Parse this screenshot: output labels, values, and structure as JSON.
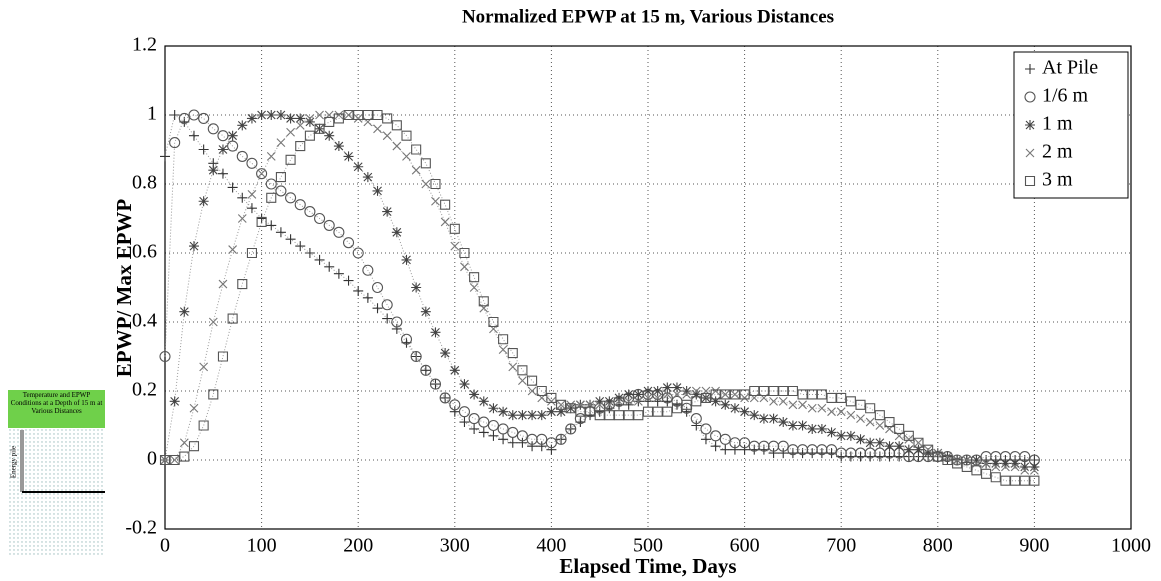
{
  "chart_data": {
    "type": "line",
    "title": "Normalized EPWP at 15 m, Various Distances",
    "xlabel": "Elapsed Time, Days",
    "ylabel": "EPWP/ Max EPWP",
    "xlim": [
      0,
      1000
    ],
    "ylim": [
      -0.2,
      1.2
    ],
    "xticks": [
      0,
      100,
      200,
      300,
      400,
      500,
      600,
      700,
      800,
      900,
      1000
    ],
    "yticks": [
      -0.2,
      0,
      0.2,
      0.4,
      0.6,
      0.8,
      1,
      1.2
    ],
    "grid": true,
    "legend": "upper right",
    "x": [
      0,
      10,
      20,
      30,
      40,
      50,
      60,
      70,
      80,
      90,
      100,
      110,
      120,
      130,
      140,
      150,
      160,
      170,
      180,
      190,
      200,
      210,
      220,
      230,
      240,
      250,
      260,
      270,
      280,
      290,
      300,
      310,
      320,
      330,
      340,
      350,
      360,
      370,
      380,
      390,
      400,
      410,
      420,
      430,
      440,
      450,
      460,
      470,
      480,
      490,
      500,
      510,
      520,
      530,
      540,
      550,
      560,
      570,
      580,
      590,
      600,
      610,
      620,
      630,
      640,
      650,
      660,
      670,
      680,
      690,
      700,
      710,
      720,
      730,
      740,
      750,
      760,
      770,
      780,
      790,
      800,
      810,
      820,
      830,
      840,
      850,
      860,
      870,
      880,
      890,
      900
    ],
    "series": [
      {
        "name": "At Pile",
        "marker": "plus",
        "color": "#333333",
        "values": [
          0.88,
          1.0,
          0.98,
          0.94,
          0.9,
          0.86,
          0.83,
          0.79,
          0.76,
          0.73,
          0.7,
          0.68,
          0.66,
          0.64,
          0.62,
          0.6,
          0.58,
          0.56,
          0.54,
          0.52,
          0.49,
          0.47,
          0.44,
          0.41,
          0.38,
          0.34,
          0.3,
          0.26,
          0.22,
          0.18,
          0.14,
          0.11,
          0.09,
          0.08,
          0.07,
          0.06,
          0.05,
          0.05,
          0.04,
          0.04,
          0.03,
          0.06,
          0.09,
          0.11,
          0.13,
          0.14,
          0.15,
          0.16,
          0.16,
          0.17,
          0.17,
          0.17,
          0.17,
          0.16,
          0.14,
          0.1,
          0.06,
          0.04,
          0.03,
          0.03,
          0.03,
          0.03,
          0.03,
          0.02,
          0.02,
          0.02,
          0.02,
          0.02,
          0.02,
          0.02,
          0.01,
          0.01,
          0.01,
          0.01,
          0.01,
          0.01,
          0.01,
          0.01,
          0.01,
          0.01,
          0.01,
          0.0,
          0.0,
          0.0,
          0.0,
          0.0,
          0.0,
          0.0,
          0.0,
          0.0,
          0.0
        ]
      },
      {
        "name": "1/6 m",
        "marker": "circle",
        "color": "#555555",
        "values": [
          0.3,
          0.92,
          0.99,
          1.0,
          0.99,
          0.96,
          0.94,
          0.91,
          0.88,
          0.86,
          0.83,
          0.8,
          0.78,
          0.76,
          0.74,
          0.72,
          0.7,
          0.68,
          0.66,
          0.63,
          0.6,
          0.55,
          0.5,
          0.45,
          0.4,
          0.35,
          0.3,
          0.26,
          0.22,
          0.18,
          0.16,
          0.14,
          0.12,
          0.11,
          0.1,
          0.09,
          0.08,
          0.07,
          0.06,
          0.06,
          0.05,
          0.06,
          0.09,
          0.12,
          0.14,
          0.15,
          0.16,
          0.17,
          0.18,
          0.19,
          0.19,
          0.19,
          0.18,
          0.17,
          0.15,
          0.12,
          0.09,
          0.07,
          0.06,
          0.05,
          0.05,
          0.04,
          0.04,
          0.04,
          0.04,
          0.03,
          0.03,
          0.03,
          0.03,
          0.03,
          0.02,
          0.02,
          0.02,
          0.02,
          0.02,
          0.02,
          0.02,
          0.01,
          0.01,
          0.01,
          0.01,
          0.01,
          0.0,
          0.0,
          0.0,
          0.01,
          0.01,
          0.01,
          0.01,
          0.01,
          0.0
        ]
      },
      {
        "name": "1 m",
        "marker": "star",
        "color": "#444444",
        "values": [
          0.0,
          0.17,
          0.43,
          0.62,
          0.75,
          0.84,
          0.9,
          0.94,
          0.97,
          0.99,
          1.0,
          1.0,
          1.0,
          0.99,
          0.99,
          0.98,
          0.96,
          0.94,
          0.91,
          0.88,
          0.85,
          0.82,
          0.78,
          0.72,
          0.66,
          0.58,
          0.5,
          0.43,
          0.37,
          0.31,
          0.26,
          0.22,
          0.19,
          0.17,
          0.15,
          0.14,
          0.13,
          0.13,
          0.13,
          0.13,
          0.14,
          0.14,
          0.15,
          0.16,
          0.16,
          0.17,
          0.17,
          0.18,
          0.19,
          0.19,
          0.2,
          0.2,
          0.21,
          0.21,
          0.2,
          0.19,
          0.18,
          0.17,
          0.16,
          0.15,
          0.14,
          0.13,
          0.12,
          0.12,
          0.11,
          0.1,
          0.1,
          0.09,
          0.09,
          0.08,
          0.07,
          0.07,
          0.06,
          0.05,
          0.05,
          0.04,
          0.04,
          0.03,
          0.03,
          0.02,
          0.02,
          0.01,
          0.0,
          0.0,
          0.0,
          -0.01,
          -0.01,
          -0.01,
          -0.01,
          -0.02,
          -0.02
        ]
      },
      {
        "name": "2 m",
        "marker": "x",
        "color": "#777777",
        "values": [
          0.0,
          0.0,
          0.05,
          0.15,
          0.27,
          0.4,
          0.51,
          0.61,
          0.7,
          0.77,
          0.83,
          0.88,
          0.92,
          0.95,
          0.97,
          0.99,
          1.0,
          1.0,
          1.0,
          1.0,
          0.99,
          0.98,
          0.96,
          0.94,
          0.91,
          0.88,
          0.84,
          0.8,
          0.75,
          0.69,
          0.62,
          0.56,
          0.5,
          0.44,
          0.38,
          0.32,
          0.27,
          0.23,
          0.2,
          0.18,
          0.17,
          0.16,
          0.16,
          0.16,
          0.16,
          0.16,
          0.16,
          0.17,
          0.17,
          0.17,
          0.18,
          0.18,
          0.19,
          0.19,
          0.19,
          0.2,
          0.2,
          0.2,
          0.19,
          0.19,
          0.18,
          0.18,
          0.18,
          0.17,
          0.17,
          0.16,
          0.16,
          0.15,
          0.15,
          0.14,
          0.14,
          0.13,
          0.12,
          0.11,
          0.1,
          0.09,
          0.07,
          0.06,
          0.05,
          0.03,
          0.02,
          0.01,
          0.0,
          0.0,
          -0.01,
          -0.01,
          -0.02,
          -0.02,
          -0.02,
          -0.03,
          -0.03
        ]
      },
      {
        "name": "3 m",
        "marker": "square",
        "color": "#555555",
        "values": [
          0.0,
          0.0,
          0.01,
          0.04,
          0.1,
          0.19,
          0.3,
          0.41,
          0.51,
          0.6,
          0.69,
          0.76,
          0.82,
          0.87,
          0.91,
          0.94,
          0.96,
          0.98,
          0.99,
          1.0,
          1.0,
          1.0,
          1.0,
          0.99,
          0.97,
          0.94,
          0.9,
          0.86,
          0.8,
          0.74,
          0.67,
          0.6,
          0.53,
          0.46,
          0.4,
          0.35,
          0.31,
          0.26,
          0.23,
          0.2,
          0.18,
          0.16,
          0.15,
          0.14,
          0.14,
          0.13,
          0.13,
          0.13,
          0.13,
          0.13,
          0.14,
          0.14,
          0.14,
          0.15,
          0.16,
          0.17,
          0.18,
          0.19,
          0.19,
          0.19,
          0.19,
          0.2,
          0.2,
          0.2,
          0.2,
          0.2,
          0.19,
          0.19,
          0.19,
          0.18,
          0.18,
          0.17,
          0.16,
          0.15,
          0.13,
          0.11,
          0.09,
          0.07,
          0.05,
          0.03,
          0.01,
          0.0,
          -0.01,
          -0.02,
          -0.03,
          -0.04,
          -0.05,
          -0.06,
          -0.06,
          -0.06,
          -0.06
        ]
      }
    ]
  },
  "inset": {
    "title": "Temperature and EPWP Conditions at a Depth of 15 m at Various Distances",
    "label": "Energy pile"
  }
}
